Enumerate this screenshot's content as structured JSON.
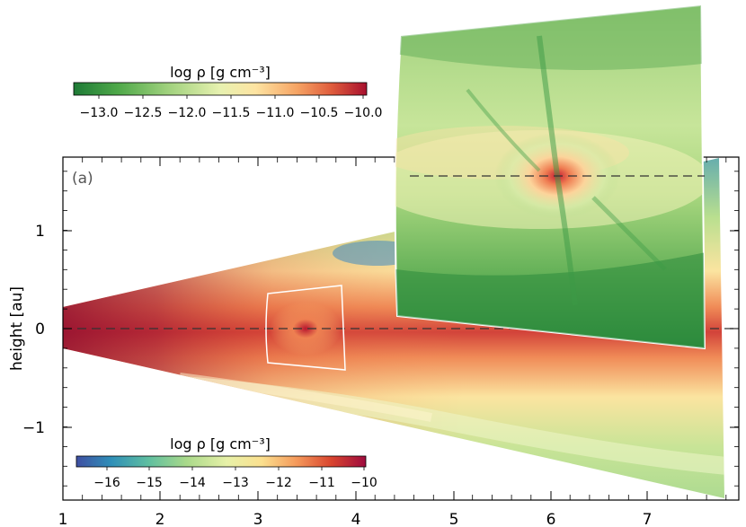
{
  "panel_label": "(a)",
  "y_axis_label": "height [au]",
  "x_ticks": [
    "1",
    "2",
    "3",
    "4",
    "5",
    "6",
    "7"
  ],
  "y_ticks": [
    "1",
    "0",
    "−1"
  ],
  "inset_colorbar": {
    "title": "log ρ [g cm⁻³]",
    "ticks": [
      "−13.0",
      "−12.5",
      "−12.0",
      "−11.5",
      "−11.0",
      "−10.5",
      "−10.0"
    ],
    "colors": [
      "#1e7a36",
      "#4ea849",
      "#9fd17d",
      "#e7f1b0",
      "#fde4a2",
      "#f6a565",
      "#df5c3c",
      "#a8102e"
    ]
  },
  "main_colorbar": {
    "title": "log ρ [g cm⁻³]",
    "ticks": [
      "−16",
      "−15",
      "−14",
      "−13",
      "−12",
      "−11",
      "−10"
    ],
    "colors": [
      "#3f4fa2",
      "#2f8fb8",
      "#5fbfa0",
      "#a9d98a",
      "#e7f1a8",
      "#fbe08f",
      "#f59a5b",
      "#d9452f",
      "#9e0b3e"
    ]
  }
}
